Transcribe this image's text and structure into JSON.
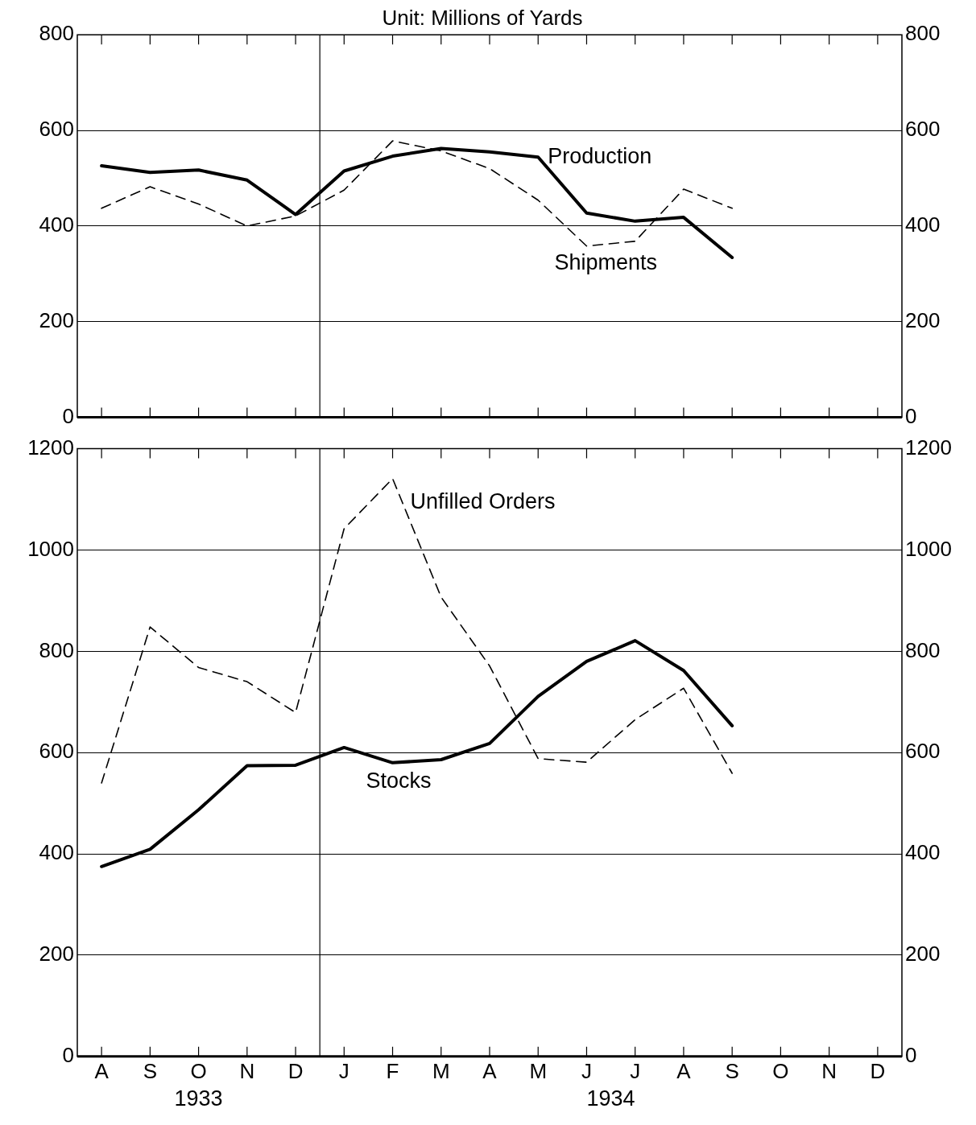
{
  "chart_data": [
    {
      "type": "line",
      "title": "Unit: Millions of Yards",
      "categories": [
        null,
        null,
        null,
        null,
        null,
        null,
        null,
        null,
        null,
        null,
        null,
        null,
        null,
        null,
        null,
        null,
        null
      ],
      "series": [
        {
          "name": "Production",
          "color": "#000000",
          "line_style": "solid",
          "values": [
            526,
            512,
            517,
            496,
            424,
            515,
            546,
            562,
            555,
            544,
            427,
            410,
            418,
            334,
            null,
            null,
            null
          ]
        },
        {
          "name": "Shipments",
          "color": "#000000",
          "line_style": "dashed",
          "values": [
            437,
            482,
            446,
            400,
            421,
            475,
            578,
            557,
            520,
            454,
            358,
            368,
            477,
            437,
            null,
            null,
            null
          ]
        }
      ],
      "ylim": [
        0,
        800
      ],
      "yticks": [
        0,
        200,
        400,
        600,
        800
      ],
      "y2lim": [
        0,
        800
      ],
      "y2ticks": [
        0,
        200,
        400,
        600,
        800
      ],
      "grid": "y",
      "legend": false,
      "marker": "none",
      "tick_labels": "y"
    },
    {
      "type": "line",
      "categories": [
        "A",
        "S",
        "O",
        "N",
        "D",
        "J",
        "F",
        "M",
        "A",
        "M",
        "J",
        "J",
        "A",
        "S",
        "O",
        "N",
        "D"
      ],
      "series": [
        {
          "name": "Stocks",
          "color": "#000000",
          "line_style": "solid",
          "values": [
            375,
            409,
            487,
            574,
            575,
            610,
            580,
            586,
            618,
            711,
            780,
            821,
            762,
            653,
            null,
            null,
            null
          ]
        },
        {
          "name": "Unfilled Orders",
          "color": "#000000",
          "line_style": "dashed",
          "values": [
            540,
            848,
            768,
            740,
            679,
            1042,
            1141,
            907,
            771,
            588,
            581,
            665,
            727,
            559,
            null,
            null,
            null
          ]
        }
      ],
      "ylim": [
        0,
        1200
      ],
      "yticks": [
        0,
        200,
        400,
        600,
        800,
        1000,
        1200
      ],
      "y2lim": [
        0,
        1200
      ],
      "y2ticks": [
        0,
        200,
        400,
        600,
        800,
        1000,
        1200
      ],
      "annotations": [
        "1933",
        "1934"
      ],
      "grid": "y",
      "legend": false,
      "marker": "none"
    }
  ]
}
